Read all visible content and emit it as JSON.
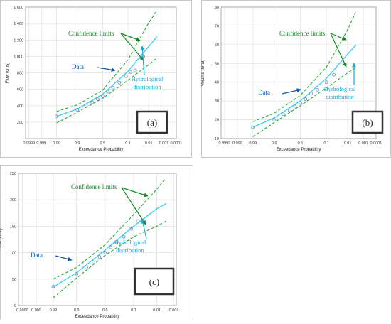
{
  "chart_data": [
    {
      "id": "a",
      "type": "line",
      "panel_label": "(a)",
      "xlabel": "Exceedance Probability",
      "ylabel": "Flow (cms)",
      "x_scale": "normal-probability-reversed",
      "x_ticks": [
        0.9999,
        0.999,
        0.99,
        0.9,
        0.5,
        0.1,
        0.01,
        0.001,
        0.0001
      ],
      "x_tick_labels": [
        "0.9999",
        "0.999",
        "0.99",
        "0.9",
        "0.5",
        "0.1",
        "0.01",
        "0.001",
        "0.0001"
      ],
      "y_ticks": [
        200,
        400,
        600,
        800,
        1000,
        1200,
        1400,
        1600
      ],
      "y_tick_labels": [
        "200",
        "400",
        "600",
        "800",
        "1 000",
        "1 200",
        "1 400",
        "1 600"
      ],
      "ylim": [
        0,
        1600
      ],
      "grid": true,
      "annotations": {
        "confidence": "Confidence limits",
        "data": "Data",
        "hydro_1": "Hydrological",
        "hydro_2": "distribution"
      },
      "series": [
        {
          "role": "fitted",
          "x": [
            0.99,
            0.9,
            0.5,
            0.1,
            0.01,
            0.003
          ],
          "y": [
            270,
            360,
            540,
            820,
            1120,
            1240
          ]
        },
        {
          "role": "upper",
          "x": [
            0.99,
            0.9,
            0.5,
            0.1,
            0.01,
            0.003
          ],
          "y": [
            330,
            410,
            590,
            960,
            1410,
            1560
          ]
        },
        {
          "role": "lower",
          "x": [
            0.99,
            0.9,
            0.5,
            0.1,
            0.01,
            0.003
          ],
          "y": [
            190,
            320,
            490,
            710,
            900,
            980
          ]
        },
        {
          "role": "observed",
          "x": [
            0.99,
            0.9,
            0.8,
            0.7,
            0.6,
            0.5,
            0.4,
            0.3,
            0.2,
            0.12,
            0.08,
            0.05,
            0.02
          ],
          "y": [
            270,
            350,
            400,
            440,
            480,
            520,
            570,
            620,
            680,
            760,
            810,
            830,
            1000
          ]
        }
      ]
    },
    {
      "id": "b",
      "type": "line",
      "panel_label": "(b)",
      "xlabel": "Exceedance Probability",
      "ylabel": "Volume (hm3)",
      "x_scale": "normal-probability-reversed",
      "x_ticks": [
        0.9999,
        0.999,
        0.99,
        0.9,
        0.5,
        0.1,
        0.01,
        0.001,
        0.0001
      ],
      "x_tick_labels": [
        "0.9999",
        "0.999",
        "0.99",
        "0.9",
        "0.5",
        "0.1",
        "0.01",
        "0.001",
        "0.0001"
      ],
      "y_ticks": [
        10,
        20,
        30,
        40,
        50,
        60,
        70,
        80
      ],
      "y_tick_labels": [
        "10",
        "20",
        "30",
        "40",
        "50",
        "60",
        "70",
        "80"
      ],
      "ylim": [
        10,
        80
      ],
      "grid": true,
      "annotations": {
        "confidence": "Confidence limits",
        "data": "Data",
        "hydro_1": "Hydrological",
        "hydro_2": "distribution"
      },
      "series": [
        {
          "role": "fitted",
          "x": [
            0.99,
            0.9,
            0.5,
            0.1,
            0.01,
            0.003
          ],
          "y": [
            16,
            21,
            30,
            42,
            55,
            60
          ]
        },
        {
          "role": "upper",
          "x": [
            0.99,
            0.9,
            0.5,
            0.1,
            0.01,
            0.003
          ],
          "y": [
            19,
            23.5,
            33,
            48,
            68,
            78
          ]
        },
        {
          "role": "lower",
          "x": [
            0.99,
            0.9,
            0.5,
            0.1,
            0.01,
            0.003
          ],
          "y": [
            11,
            18.5,
            27.5,
            37,
            45,
            48
          ]
        },
        {
          "role": "observed",
          "x": [
            0.99,
            0.9,
            0.8,
            0.7,
            0.6,
            0.5,
            0.4,
            0.3,
            0.2,
            0.1,
            0.05
          ],
          "y": [
            16,
            20,
            23,
            25,
            27,
            29,
            31,
            34,
            36,
            40,
            44
          ]
        }
      ]
    },
    {
      "id": "c",
      "type": "line",
      "panel_label": "(c)",
      "xlabel": "Exceedance Probability",
      "ylabel": "Flow (cms)",
      "x_scale": "normal-probability-reversed",
      "x_ticks": [
        0.9999,
        0.999,
        0.99,
        0.9,
        0.5,
        0.1,
        0.01,
        0.001
      ],
      "x_tick_labels": [
        "0.9999",
        "0.999",
        "0.99",
        "0.9",
        "0.5",
        "0.1",
        "0.01",
        "0.001"
      ],
      "y_ticks": [
        0,
        50,
        100,
        150,
        200,
        250
      ],
      "y_tick_labels": [
        "0",
        "50",
        "100",
        "150",
        "200",
        "250"
      ],
      "ylim": [
        0,
        250
      ],
      "grid": true,
      "annotations": {
        "confidence": "Confidence limits",
        "data": "Data",
        "hydro_1": "Hydrological",
        "hydro_2": "distribution"
      },
      "series": [
        {
          "role": "fitted",
          "x": [
            0.99,
            0.9,
            0.5,
            0.1,
            0.01,
            0.003
          ],
          "y": [
            35,
            62,
            105,
            150,
            183,
            193
          ]
        },
        {
          "role": "upper",
          "x": [
            0.99,
            0.9,
            0.5,
            0.1,
            0.01,
            0.003
          ],
          "y": [
            50,
            72,
            115,
            172,
            220,
            242
          ]
        },
        {
          "role": "lower",
          "x": [
            0.99,
            0.9,
            0.5,
            0.1,
            0.01,
            0.003
          ],
          "y": [
            15,
            52,
            95,
            130,
            150,
            160
          ]
        },
        {
          "role": "observed",
          "x": [
            0.99,
            0.9,
            0.8,
            0.7,
            0.6,
            0.5,
            0.4,
            0.3,
            0.2,
            0.12,
            0.07
          ],
          "y": [
            36,
            60,
            72,
            82,
            92,
            100,
            110,
            120,
            130,
            145,
            160
          ]
        }
      ]
    }
  ],
  "colors": {
    "fitted": "#33ccee",
    "bounds": "#22aa33",
    "observed": "#7799cc",
    "confidence_text": "#118822",
    "data_text": "#1155aa",
    "hydro_text": "#11aadd",
    "grid": "#e2e2e2",
    "frame": "#c8c8c8"
  }
}
